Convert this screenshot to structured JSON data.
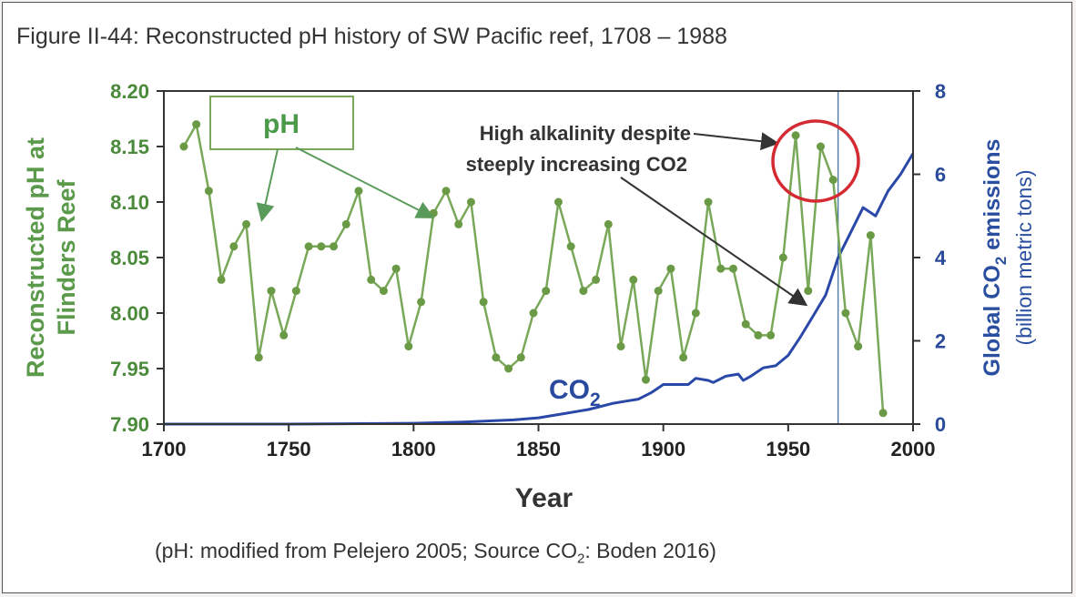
{
  "figure": {
    "title": "Figure II-44: Reconstructed pH history of SW Pacific reef, 1708 – 1988",
    "source_prefix": "(pH: modified from Pelejero 2005; Source CO",
    "source_sub": "2",
    "source_suffix": ": Boden 2016)"
  },
  "chart_data": {
    "type": "line",
    "title": "Figure II-44: Reconstructed pH history of SW Pacific reef, 1708 – 1988",
    "xlabel": "Year",
    "ylabel_left_line1": "Reconstructed pH at",
    "ylabel_left_line2": "Flinders Reef",
    "ylabel_right_main": "Global CO",
    "ylabel_right_sub": "2",
    "ylabel_right_tail": " emissions",
    "ylabel_right_unit": "(billion metric tons)",
    "xlim": [
      1700,
      2000
    ],
    "ylim_left": [
      7.9,
      8.2
    ],
    "ylim_right": [
      0,
      8
    ],
    "x_ticks": [
      "1700",
      "1750",
      "1800",
      "1850",
      "1900",
      "1950",
      "2000"
    ],
    "y_left_ticks": [
      "7.90",
      "7.95",
      "8.00",
      "8.05",
      "8.10",
      "8.15",
      "8.20"
    ],
    "y_right_ticks": [
      "0",
      "2",
      "4",
      "6",
      "8"
    ],
    "colors": {
      "ph_line": "#7aa85a",
      "ph_marker": "#6a9a45",
      "co2_line": "#2a48a8",
      "circle": "#d42a32",
      "vline": "#3a6a9a",
      "axis_left": "#4a8a3a",
      "axis_right": "#2a4a9a"
    },
    "series": [
      {
        "name": "pH",
        "axis": "left",
        "x": [
          1708,
          1713,
          1718,
          1723,
          1728,
          1733,
          1738,
          1743,
          1748,
          1753,
          1758,
          1763,
          1768,
          1773,
          1778,
          1783,
          1788,
          1793,
          1798,
          1803,
          1808,
          1813,
          1818,
          1823,
          1828,
          1833,
          1838,
          1843,
          1848,
          1853,
          1858,
          1863,
          1868,
          1873,
          1878,
          1883,
          1888,
          1893,
          1898,
          1903,
          1908,
          1913,
          1918,
          1923,
          1928,
          1933,
          1938,
          1943,
          1948,
          1953,
          1958,
          1963,
          1968,
          1973,
          1978,
          1983,
          1988
        ],
        "y": [
          8.15,
          8.17,
          8.11,
          8.03,
          8.06,
          8.08,
          7.96,
          8.02,
          7.98,
          8.02,
          8.06,
          8.06,
          8.06,
          8.08,
          8.11,
          8.03,
          8.02,
          8.04,
          7.97,
          8.01,
          8.09,
          8.11,
          8.08,
          8.1,
          8.01,
          7.96,
          7.95,
          7.96,
          8.0,
          8.02,
          8.1,
          8.06,
          8.02,
          8.03,
          8.08,
          7.97,
          8.03,
          7.94,
          8.02,
          8.04,
          7.96,
          8.0,
          8.1,
          8.04,
          8.04,
          7.99,
          7.98,
          7.98,
          8.05,
          8.16,
          8.02,
          8.15,
          8.12,
          8.0,
          7.97,
          8.07,
          7.91
        ]
      },
      {
        "name": "CO2",
        "axis": "right",
        "x": [
          1700,
          1750,
          1800,
          1820,
          1840,
          1850,
          1860,
          1870,
          1880,
          1885,
          1890,
          1895,
          1900,
          1905,
          1910,
          1913,
          1918,
          1920,
          1925,
          1930,
          1932,
          1935,
          1940,
          1945,
          1950,
          1955,
          1960,
          1965,
          1970,
          1975,
          1980,
          1985,
          1990,
          1995,
          2000
        ],
        "y": [
          0,
          0,
          0.02,
          0.05,
          0.1,
          0.15,
          0.25,
          0.35,
          0.5,
          0.55,
          0.6,
          0.75,
          0.95,
          0.95,
          0.95,
          1.1,
          1.05,
          1.0,
          1.15,
          1.2,
          1.05,
          1.15,
          1.35,
          1.4,
          1.65,
          2.1,
          2.6,
          3.1,
          4.0,
          4.6,
          5.2,
          5.0,
          5.6,
          6.0,
          6.5
        ]
      }
    ],
    "annotations": {
      "ph_box_label": "pH",
      "co2_label_main": "CO",
      "co2_label_sub": "2",
      "note_line1": "High alkalinity despite",
      "note_line2": "steeply increasing CO2"
    },
    "vertical_line_x": 1970,
    "highlight_circle_center": [
      1961,
      8.15
    ],
    "grid": false
  }
}
